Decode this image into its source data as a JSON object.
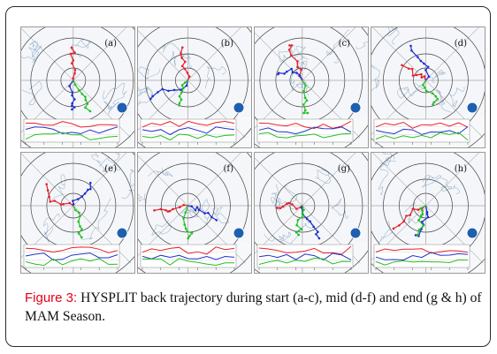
{
  "figure": {
    "panels": [
      {
        "letter": "(a)"
      },
      {
        "letter": "(b)"
      },
      {
        "letter": "(c)"
      },
      {
        "letter": "(d)"
      },
      {
        "letter": "(e)"
      },
      {
        "letter": "(f)"
      },
      {
        "letter": "(g)"
      },
      {
        "letter": "(h)"
      }
    ]
  },
  "caption": {
    "label": "Figure 3:",
    "text": " HYSPLIT back trajectory during start (a-c), mid (d-f) and end (g & h) of MAM Season."
  },
  "colors": {
    "trajectory_red": "#e8202a",
    "trajectory_blue": "#2030d0",
    "trajectory_green": "#22c022",
    "label_red": "#e2001a"
  }
}
